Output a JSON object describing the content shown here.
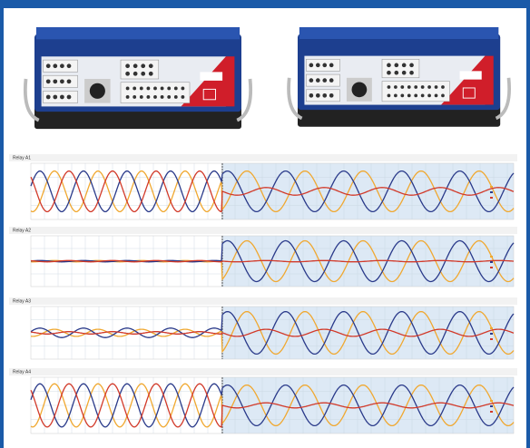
{
  "panels": [
    {
      "label": "Relay A1"
    },
    {
      "label": "Relay A2"
    },
    {
      "label": "Relay A3"
    },
    {
      "label": "Relay A4"
    }
  ]
}
